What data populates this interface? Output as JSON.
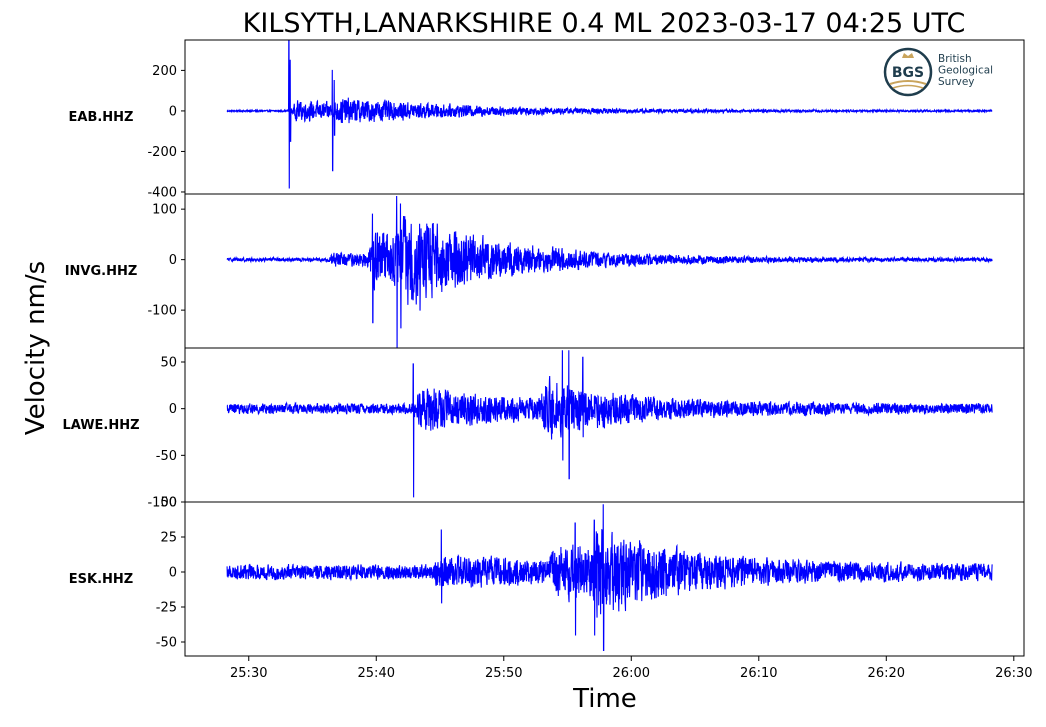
{
  "chart_data": {
    "type": "line",
    "title": "KILSYTH,LANARKSHIRE 0.4 ML   2023-03-17 04:25 UTC",
    "xlabel": "Time",
    "ylabel": "Velocity nm/s",
    "x_range_seconds": [
      25.0,
      90.8
    ],
    "x_ticks": [
      {
        "value": 30,
        "label": "25:30"
      },
      {
        "value": 40,
        "label": "25:40"
      },
      {
        "value": 50,
        "label": "25:50"
      },
      {
        "value": 60,
        "label": "26:00"
      },
      {
        "value": 70,
        "label": "26:10"
      },
      {
        "value": 80,
        "label": "26:20"
      },
      {
        "value": 90,
        "label": "26:30"
      }
    ],
    "trace_start": 28.3,
    "trace_end": 88.3,
    "line_color": "#0000ff",
    "grid": false,
    "series": [
      {
        "name": "EAB.HHZ",
        "ylim": [
          -410,
          350
        ],
        "yticks": [
          {
            "value": 200,
            "label": "200"
          },
          {
            "value": 0,
            "label": "0"
          },
          {
            "value": -200,
            "label": "-200"
          },
          {
            "value": -400,
            "label": "-400"
          }
        ],
        "noise_base": 4,
        "coda": [
          {
            "t0": 33.2,
            "amp": 55,
            "decay": 12
          },
          {
            "t0": 36.6,
            "amp": 35,
            "decay": 9
          }
        ],
        "spikes": [
          {
            "t": 33.15,
            "min": -380,
            "max": 345
          },
          {
            "t": 33.25,
            "min": -150,
            "max": 250
          },
          {
            "t": 36.55,
            "min": -295,
            "max": 200
          },
          {
            "t": 36.7,
            "min": -120,
            "max": 150
          }
        ]
      },
      {
        "name": "INVG.HHZ",
        "ylim": [
          -175,
          130
        ],
        "yticks": [
          {
            "value": 100,
            "label": "100"
          },
          {
            "value": 0,
            "label": "0"
          },
          {
            "value": -100,
            "label": "-100"
          }
        ],
        "noise_base": 4,
        "coda": [
          {
            "t0": 36.2,
            "amp": 14,
            "decay": 10
          },
          {
            "t0": 39.3,
            "amp": 55,
            "decay": 7
          },
          {
            "t0": 41.4,
            "amp": 60,
            "decay": 8
          }
        ],
        "spikes": [
          {
            "t": 39.7,
            "min": -125,
            "max": 90
          },
          {
            "t": 41.6,
            "min": -175,
            "max": 125
          },
          {
            "t": 41.9,
            "min": -135,
            "max": 110
          },
          {
            "t": 43.4,
            "min": -100,
            "max": 70
          }
        ]
      },
      {
        "name": "LAWE.HHZ",
        "ylim": [
          -100,
          65
        ],
        "yticks": [
          {
            "value": 50,
            "label": "50"
          },
          {
            "value": 0,
            "label": "0"
          },
          {
            "value": -50,
            "label": "-50"
          },
          {
            "value": -100,
            "label": "-100"
          }
        ],
        "noise_base": 6,
        "coda": [
          {
            "t0": 42.9,
            "amp": 22,
            "decay": 9
          },
          {
            "t0": 52.8,
            "amp": 26,
            "decay": 6
          }
        ],
        "spikes": [
          {
            "t": 42.9,
            "min": -95,
            "max": 48
          },
          {
            "t": 54.6,
            "min": -55,
            "max": 62
          },
          {
            "t": 55.1,
            "min": -75,
            "max": 62
          },
          {
            "t": 56.2,
            "min": -30,
            "max": 55
          }
        ]
      },
      {
        "name": "ESK.HHZ",
        "ylim": [
          -60,
          50
        ],
        "yticks": [
          {
            "value": 50,
            "label": "50"
          },
          {
            "value": 25,
            "label": "25"
          },
          {
            "value": 0,
            "label": "0"
          },
          {
            "value": -25,
            "label": "-25"
          },
          {
            "value": -50,
            "label": "-50"
          }
        ],
        "noise_base": 6,
        "coda": [
          {
            "t0": 44.4,
            "amp": 8,
            "decay": 14
          },
          {
            "t0": 53.5,
            "amp": 14,
            "decay": 8
          },
          {
            "t0": 56.8,
            "amp": 20,
            "decay": 6
          }
        ],
        "spikes": [
          {
            "t": 45.1,
            "min": -22,
            "max": 30
          },
          {
            "t": 55.6,
            "min": -45,
            "max": 35
          },
          {
            "t": 57.1,
            "min": -45,
            "max": 37
          },
          {
            "t": 57.8,
            "min": -56,
            "max": 48
          }
        ]
      }
    ]
  },
  "logo": {
    "mark": "BGS",
    "lines": [
      "British",
      "Geological",
      "Survey"
    ],
    "color": "#1f3d4d",
    "accent": "#c9a45c"
  }
}
